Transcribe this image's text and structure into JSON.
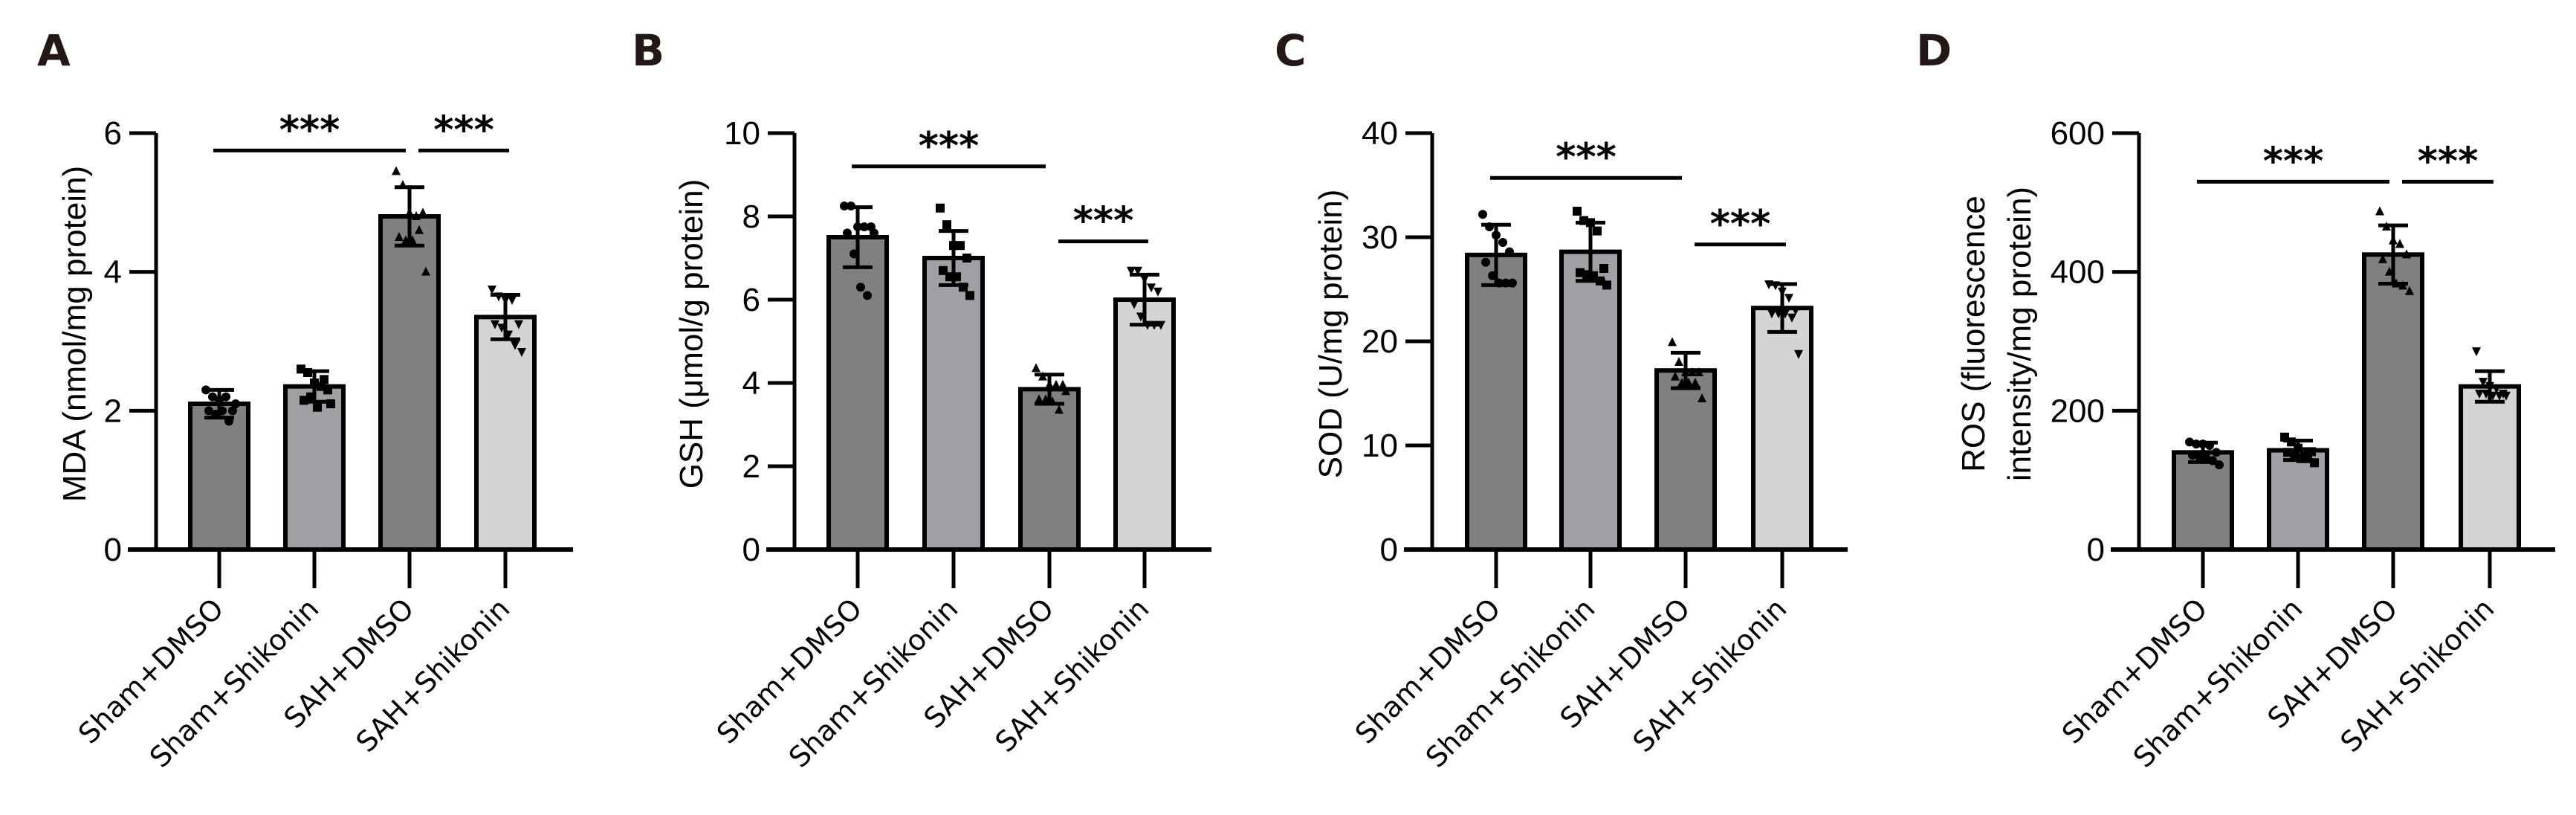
{
  "figure": {
    "categories": [
      "Sham+DMSO",
      "Sham+Shikonin",
      "SAH+DMSO",
      "SAH+Shikonin"
    ],
    "bar_colors": [
      "#808080",
      "#a0a0a4",
      "#808080",
      "#d4d4d4"
    ],
    "marker_shapes": [
      "circle",
      "square",
      "triangle-up",
      "triangle-down"
    ],
    "significance_label": "***"
  },
  "chart_data": [
    {
      "panel": "A",
      "type": "bar",
      "ylabel": "MDA (nmol/mg protein)",
      "ylabel_lines": [
        "MDA (nmol/mg protein)"
      ],
      "ylim": [
        0,
        6
      ],
      "yticks": [
        0,
        2,
        4,
        6
      ],
      "categories": [
        "Sham+DMSO",
        "Sham+Shikonin",
        "SAH+DMSO",
        "SAH+Shikonin"
      ],
      "values": [
        2.1,
        2.35,
        4.8,
        3.35
      ],
      "errors": [
        0.2,
        0.22,
        0.42,
        0.32
      ],
      "points": [
        [
          2.3,
          2.2,
          2.15,
          2.2,
          2.0,
          2.0,
          1.95,
          2.0,
          1.85,
          2.1
        ],
        [
          2.6,
          2.55,
          2.4,
          2.35,
          2.3,
          2.15,
          2.2,
          2.05,
          2.45,
          2.1
        ],
        [
          5.45,
          5.25,
          4.85,
          4.8,
          4.85,
          4.5,
          4.45,
          4.45,
          4.6,
          4.0
        ],
        [
          3.75,
          3.65,
          3.6,
          3.6,
          3.25,
          3.25,
          3.2,
          3.1,
          2.95,
          2.85
        ]
      ],
      "comparisons": [
        {
          "from": 0,
          "to": 2,
          "level": 5.75,
          "label": "***"
        },
        {
          "from": 2,
          "to": 3,
          "level": 5.75,
          "label": "***"
        }
      ]
    },
    {
      "panel": "B",
      "type": "bar",
      "ylabel": "GSH (μmol/g protein)",
      "ylabel_lines": [
        "GSH (μmol/g protein)"
      ],
      "ylim": [
        0,
        10
      ],
      "yticks": [
        0,
        2,
        4,
        6,
        8,
        10
      ],
      "categories": [
        "Sham+DMSO",
        "Sham+Shikonin",
        "SAH+DMSO",
        "SAH+Shikonin"
      ],
      "values": [
        7.5,
        7.0,
        3.85,
        6.0
      ],
      "errors": [
        0.72,
        0.65,
        0.35,
        0.6
      ],
      "points": [
        [
          8.25,
          8.25,
          7.75,
          7.75,
          7.75,
          7.6,
          7.1,
          6.3,
          6.1,
          7.6
        ],
        [
          8.2,
          7.8,
          7.3,
          7.3,
          7.0,
          6.7,
          6.55,
          6.55,
          6.3,
          6.1
        ],
        [
          4.35,
          4.15,
          3.95,
          3.95,
          3.95,
          3.6,
          3.6,
          3.55,
          3.35,
          3.8
        ],
        [
          6.7,
          6.7,
          6.5,
          6.3,
          6.2,
          5.9,
          5.6,
          5.4,
          5.4,
          5.4
        ]
      ],
      "comparisons": [
        {
          "from": 0,
          "to": 2,
          "level": 9.2,
          "label": "***"
        },
        {
          "from": 2,
          "to": 3,
          "level": 7.4,
          "label": "***"
        }
      ]
    },
    {
      "panel": "C",
      "type": "bar",
      "ylabel": "SOD (U/mg protein)",
      "ylabel_lines": [
        "SOD (U/mg protein)"
      ],
      "ylim": [
        0,
        40
      ],
      "yticks": [
        0,
        10,
        20,
        30,
        40
      ],
      "categories": [
        "Sham+DMSO",
        "Sham+Shikonin",
        "SAH+DMSO",
        "SAH+Shikonin"
      ],
      "values": [
        28.3,
        28.6,
        17.2,
        23.2
      ],
      "errors": [
        2.9,
        2.8,
        1.7,
        2.3
      ],
      "points": [
        [
          32.2,
          31.0,
          30.2,
          29.5,
          28.6,
          27.6,
          26.3,
          25.6,
          25.6,
          25.6
        ],
        [
          32.5,
          31.6,
          31.4,
          30.6,
          27.0,
          26.6,
          26.4,
          26.3,
          25.8,
          25.4
        ],
        [
          19.9,
          18.0,
          17.0,
          17.0,
          17.0,
          16.6,
          16.0,
          16.0,
          16.0,
          14.5
        ],
        [
          25.5,
          25.4,
          24.8,
          24.2,
          23.0,
          22.7,
          22.7,
          22.7,
          22.3,
          18.8
        ]
      ],
      "comparisons": [
        {
          "from": 0,
          "to": 2,
          "level": 35.7,
          "label": "***"
        },
        {
          "from": 2,
          "to": 3,
          "level": 29.3,
          "label": "***"
        }
      ]
    },
    {
      "panel": "D",
      "type": "bar",
      "ylabel": "ROS (fluorescence intensity/mg protein)",
      "ylabel_lines": [
        "ROS (fluorescence",
        "intensity/mg protein)"
      ],
      "ylim": [
        0,
        600
      ],
      "yticks": [
        0,
        200,
        400,
        600
      ],
      "categories": [
        "Sham+DMSO",
        "Sham+Shikonin",
        "SAH+DMSO",
        "SAH+Shikonin"
      ],
      "values": [
        140,
        143,
        425,
        235
      ],
      "errors": [
        14,
        14,
        42,
        22
      ],
      "points": [
        [
          155,
          152,
          152,
          150,
          140,
          136,
          134,
          133,
          128,
          122
        ],
        [
          162,
          155,
          146,
          141,
          141,
          140,
          137,
          131,
          131,
          125
        ],
        [
          487,
          465,
          445,
          440,
          425,
          418,
          400,
          383,
          380,
          372
        ],
        [
          286,
          242,
          236,
          232,
          225,
          225,
          225,
          222,
          222,
          222
        ]
      ],
      "comparisons": [
        {
          "from": 0,
          "to": 2,
          "level": 530,
          "label": "***"
        },
        {
          "from": 2,
          "to": 3,
          "level": 530,
          "label": "***"
        }
      ]
    }
  ],
  "panels": [
    {
      "letter": "A"
    },
    {
      "letter": "B"
    },
    {
      "letter": "C"
    },
    {
      "letter": "D"
    }
  ]
}
